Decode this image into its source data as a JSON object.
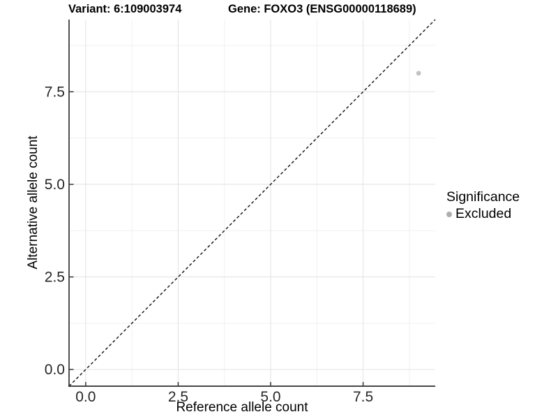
{
  "titles": {
    "variant": "Variant: 6:109003974",
    "gene": "Gene: FOXO3 (ENSG00000118689)"
  },
  "chart_data": {
    "type": "scatter",
    "xlabel": "Reference allele count",
    "ylabel": "Alternative allele count",
    "xlim": [
      -0.45,
      9.45
    ],
    "ylim": [
      -0.45,
      9.45
    ],
    "xticks": [
      0.0,
      2.5,
      5.0,
      7.5
    ],
    "yticks": [
      0.0,
      2.5,
      5.0,
      7.5
    ],
    "xminor": [
      1.25,
      3.75,
      6.25,
      8.75
    ],
    "yminor": [
      1.25,
      3.75,
      6.25,
      8.75
    ],
    "tick_decimals": 1,
    "grid": "major+minor",
    "reference_line": {
      "type": "identity y=x",
      "style": "dashed",
      "color": "#1f1f1f"
    },
    "series": [
      {
        "name": "Excluded",
        "color": "#c1c1c1",
        "points": [
          {
            "x": 9,
            "y": 8
          }
        ],
        "point_radius": 3.4
      }
    ],
    "legend": {
      "title": "Significance",
      "position": "right",
      "items": [
        {
          "label": "Excluded",
          "color": "#aeaeae"
        }
      ]
    },
    "colors": {
      "background": "#ffffff",
      "axis_line": "#474747",
      "tick_mark": "#333333",
      "tick_label": "#262626",
      "grid_major": "#e4e4e4",
      "grid_minor": "#f0f0f0"
    }
  }
}
